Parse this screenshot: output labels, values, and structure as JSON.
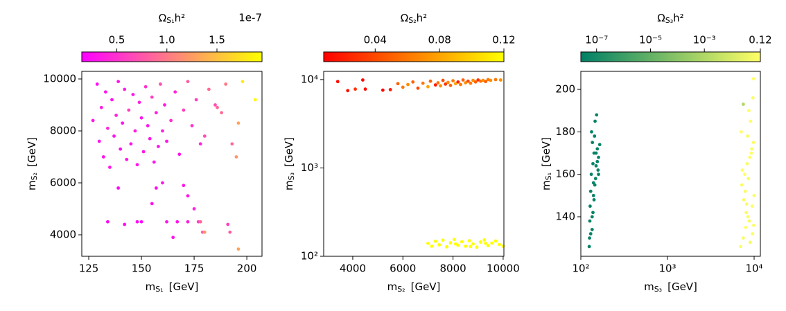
{
  "chart_data": [
    {
      "type": "scatter",
      "xlabel": {
        "text": "m",
        "sub": "S₁",
        "unit": "[GeV]"
      },
      "ylabel": {
        "text": "m",
        "sub": "S₂",
        "unit": "[GeV]"
      },
      "colorbar": {
        "label": {
          "text": "Ω",
          "sub": "S₁",
          "tail": "h²"
        },
        "offset": "1e-7",
        "colormap": "spring",
        "scale": "linear",
        "lim": [
          0.15,
          1.95
        ],
        "ticks": [
          0.5,
          {
            "value": 1.0,
            "label": "1.0"
          },
          1.5
        ]
      },
      "xlim": [
        121.7,
        207.2
      ],
      "xticks": [
        125,
        150,
        175,
        200
      ],
      "ylim": [
        3173,
        10293
      ],
      "yticks": [
        4000,
        6000,
        8000,
        10000
      ],
      "x": [
        127,
        129,
        130,
        131,
        132,
        133,
        134,
        135,
        136,
        137,
        138,
        139,
        140,
        141,
        142,
        143,
        144,
        145,
        146,
        147,
        148,
        149,
        150,
        151,
        152,
        153,
        154,
        155,
        156,
        157,
        158,
        159,
        160,
        161,
        162,
        164,
        166,
        168,
        170,
        172,
        174,
        176,
        178,
        182,
        186,
        134,
        142,
        148,
        150,
        162,
        167,
        172,
        177,
        178,
        179,
        180,
        191,
        192,
        196,
        198,
        204,
        196,
        195,
        193,
        188,
        180,
        185,
        190,
        175,
        170,
        160,
        155,
        139,
        157,
        165,
        172
      ],
      "y": [
        8400,
        9800,
        7600,
        8900,
        7000,
        9500,
        8100,
        6600,
        9200,
        7800,
        8600,
        9900,
        7300,
        8300,
        9600,
        6900,
        8800,
        7500,
        9400,
        8000,
        6700,
        9100,
        8500,
        7200,
        9700,
        8200,
        7700,
        9300,
        6800,
        8700,
        7400,
        9800,
        8000,
        9000,
        7600,
        8400,
        9500,
        7100,
        8800,
        9900,
        8200,
        9200,
        7500,
        9600,
        8900,
        4500,
        4400,
        4500,
        4500,
        4500,
        4500,
        4500,
        4500,
        4500,
        4100,
        4100,
        4400,
        4100,
        3450,
        9900,
        9200,
        8300,
        7000,
        7500,
        8700,
        7800,
        9000,
        9800,
        5000,
        5900,
        6000,
        5200,
        5800,
        5800,
        3900,
        5500
      ],
      "c": [
        0.3,
        0.25,
        0.3,
        0.35,
        0.28,
        0.3,
        0.45,
        0.3,
        0.25,
        0.3,
        0.4,
        0.3,
        0.25,
        0.3,
        0.35,
        0.3,
        0.6,
        0.3,
        0.3,
        0.35,
        0.3,
        0.4,
        0.3,
        0.3,
        0.5,
        0.3,
        0.3,
        0.6,
        0.3,
        0.35,
        0.3,
        0.7,
        0.4,
        0.35,
        0.3,
        0.5,
        0.4,
        0.3,
        0.6,
        0.8,
        0.5,
        0.6,
        0.4,
        0.9,
        0.9,
        0.2,
        0.2,
        0.2,
        0.2,
        0.3,
        0.3,
        0.35,
        0.6,
        0.9,
        0.8,
        1.2,
        0.6,
        0.8,
        1.3,
        1.8,
        1.9,
        1.3,
        1.2,
        0.9,
        0.9,
        0.7,
        0.7,
        1.0,
        0.4,
        0.3,
        0.3,
        0.25,
        0.2,
        0.25,
        0.3,
        0.3
      ]
    },
    {
      "type": "scatter",
      "xlabel": {
        "text": "m",
        "sub": "S₂",
        "unit": "[GeV]"
      },
      "ylabel": {
        "text": "m",
        "sub": "S₃",
        "unit": "[GeV]"
      },
      "colorbar": {
        "label": {
          "text": "Ω",
          "sub": "S₂",
          "tail": "h²"
        },
        "colormap": "autumn",
        "scale": "linear",
        "lim": [
          0.008,
          0.12
        ],
        "ticks": [
          0.04,
          0.08,
          0.12
        ]
      },
      "xlim": [
        2840,
        10030
      ],
      "xticks": [
        4000,
        6000,
        8000,
        10000
      ],
      "yscale": "log",
      "ylim": [
        100,
        12400
      ],
      "yticks": [
        {
          "value": 100,
          "label": "10²"
        },
        {
          "value": 1000,
          "label": "10³"
        },
        {
          "value": 10000,
          "label": "10⁴"
        }
      ],
      "x": [
        3400,
        3800,
        4100,
        4400,
        4500,
        5200,
        5500,
        5800,
        6000,
        6200,
        6400,
        6600,
        6800,
        7000,
        7100,
        7300,
        7400,
        7500,
        7600,
        7700,
        7800,
        7900,
        8000,
        8100,
        8200,
        8300,
        8400,
        8500,
        8600,
        8700,
        8800,
        8900,
        9000,
        9100,
        9200,
        9300,
        9400,
        9500,
        9700,
        9900,
        7000,
        7150,
        7300,
        7450,
        7600,
        7750,
        7900,
        8050,
        8200,
        8350,
        8500,
        8650,
        8800,
        8950,
        9100,
        9250,
        9400,
        9550,
        9700,
        9850,
        10000,
        8100,
        8700,
        9300
      ],
      "y": [
        9500,
        7500,
        7800,
        9900,
        7800,
        7600,
        7700,
        9000,
        8200,
        8800,
        9400,
        8000,
        9100,
        8300,
        9600,
        8700,
        9200,
        8500,
        9800,
        8900,
        9300,
        8600,
        9700,
        9000,
        9400,
        8800,
        9900,
        9200,
        9600,
        9100,
        9800,
        9400,
        9900,
        9600,
        9800,
        9500,
        10000,
        9800,
        10000,
        9900,
        140,
        130,
        148,
        135,
        152,
        128,
        142,
        155,
        133,
        146,
        130,
        150,
        138,
        127,
        145,
        153,
        132,
        141,
        149,
        136,
        130,
        138,
        129,
        140
      ],
      "c": [
        0.012,
        0.015,
        0.03,
        0.01,
        0.015,
        0.01,
        0.02,
        0.05,
        0.06,
        0.07,
        0.05,
        0.04,
        0.06,
        0.08,
        0.05,
        0.02,
        0.06,
        0.07,
        0.04,
        0.03,
        0.07,
        0.05,
        0.06,
        0.08,
        0.02,
        0.06,
        0.05,
        0.07,
        0.04,
        0.06,
        0.07,
        0.05,
        0.03,
        0.06,
        0.07,
        0.05,
        0.06,
        0.07,
        0.06,
        0.07,
        0.12,
        0.12,
        0.12,
        0.12,
        0.12,
        0.12,
        0.12,
        0.12,
        0.12,
        0.12,
        0.12,
        0.12,
        0.12,
        0.12,
        0.12,
        0.12,
        0.12,
        0.12,
        0.12,
        0.12,
        0.12,
        0.12,
        0.12,
        0.12
      ]
    },
    {
      "type": "scatter",
      "xlabel": {
        "text": "m",
        "sub": "S₃",
        "unit": "[GeV]"
      },
      "ylabel": {
        "text": "m",
        "sub": "S₁",
        "unit": "[GeV]"
      },
      "colorbar": {
        "label": {
          "text": "Ω",
          "sub": "S₃",
          "tail": "h²"
        },
        "colormap": "summer",
        "scale": "log",
        "lim": [
          2.6e-08,
          0.12
        ],
        "ticks": [
          {
            "value": 1e-07,
            "label": "10⁻⁷"
          },
          {
            "value": 1e-05,
            "label": "10⁻⁵"
          },
          {
            "value": 0.001,
            "label": "10⁻³"
          },
          0.12
        ]
      },
      "xscale": "log",
      "xlim": [
        100,
        11800
      ],
      "xticks": [
        {
          "value": 100,
          "label": "10²"
        },
        {
          "value": 1000,
          "label": "10³"
        },
        {
          "value": 10000,
          "label": "10⁴"
        }
      ],
      "ylim": [
        121.4,
        208.5
      ],
      "yticks": [
        140,
        160,
        180,
        200
      ],
      "x": [
        125,
        130,
        135,
        128,
        140,
        145,
        132,
        138,
        150,
        155,
        127,
        142,
        148,
        160,
        136,
        133,
        146,
        152,
        158,
        165,
        130,
        138,
        144,
        126,
        150,
        140,
        135,
        155,
        142,
        160,
        7000,
        7500,
        8000,
        8500,
        9000,
        9500,
        10000,
        7200,
        7800,
        8300,
        8800,
        9300,
        9800,
        7100,
        7600,
        8100,
        8600,
        9100,
        9600,
        7300,
        7900,
        8400,
        8900,
        9400,
        9900,
        7500,
        8700,
        9800,
        9700,
        8200
      ],
      "y": [
        126,
        132,
        140,
        145,
        150,
        155,
        160,
        165,
        170,
        172,
        138,
        148,
        158,
        168,
        175,
        180,
        185,
        188,
        162,
        174,
        152,
        142,
        178,
        130,
        164,
        156,
        134,
        166,
        170,
        160,
        126,
        130,
        135,
        140,
        128,
        145,
        150,
        155,
        160,
        165,
        138,
        170,
        175,
        180,
        148,
        142,
        158,
        185,
        132,
        162,
        152,
        178,
        168,
        172,
        136,
        193,
        190,
        205,
        196,
        146
      ],
      "c": [
        4e-08,
        4e-08,
        4e-08,
        4e-08,
        4e-08,
        4e-08,
        4e-08,
        4e-08,
        4e-08,
        4e-08,
        4e-08,
        4e-08,
        4e-08,
        4e-08,
        4e-08,
        4e-08,
        4e-08,
        4e-08,
        4e-08,
        4e-08,
        4e-08,
        4e-08,
        4e-08,
        4e-08,
        4e-08,
        4e-08,
        4e-08,
        4e-08,
        4e-08,
        4e-08,
        0.1,
        0.08,
        0.12,
        0.1,
        0.06,
        0.11,
        0.1,
        0.09,
        0.12,
        0.1,
        0.07,
        0.11,
        0.1,
        0.12,
        0.08,
        0.1,
        0.09,
        0.11,
        0.1,
        0.12,
        0.08,
        0.1,
        0.11,
        0.09,
        0.1,
        0.001,
        0.12,
        0.12,
        0.1,
        0.09
      ]
    }
  ]
}
